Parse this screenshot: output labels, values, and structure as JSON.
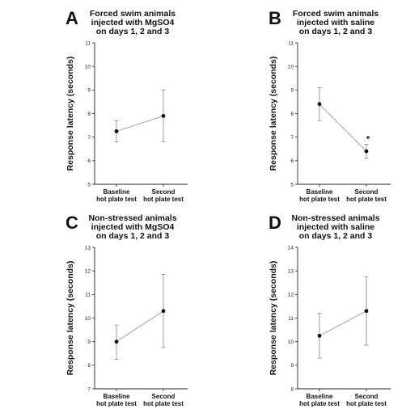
{
  "chart_data": [
    {
      "type": "line",
      "panel_label": "A",
      "title": [
        "Forced swim animals",
        "injected with MgSO4",
        "on days 1, 2 and 3"
      ],
      "ylabel": "Response latency (seconds)",
      "categories": [
        [
          "Baseline",
          "hot plate test"
        ],
        [
          "Second",
          "hot plate test"
        ]
      ],
      "values": [
        7.25,
        7.9
      ],
      "error_low": [
        6.8,
        6.8
      ],
      "error_high": [
        7.7,
        9.0
      ],
      "ylim": [
        5,
        11
      ],
      "yticks": [
        5,
        6,
        7,
        8,
        9,
        10,
        11
      ],
      "annotations": []
    },
    {
      "type": "line",
      "panel_label": "B",
      "title": [
        "Forced swim animals",
        "injected with saline",
        "on days 1, 2 and 3"
      ],
      "ylabel": "Response latency (seconds)",
      "categories": [
        [
          "Baseline",
          "hot plate test"
        ],
        [
          "Second",
          "hot plate test"
        ]
      ],
      "values": [
        8.4,
        6.4
      ],
      "error_low": [
        7.7,
        6.1
      ],
      "error_high": [
        9.1,
        6.7
      ],
      "ylim": [
        5,
        11
      ],
      "yticks": [
        5,
        6,
        7,
        8,
        9,
        10,
        11
      ],
      "annotations": [
        {
          "text": "*",
          "index": 1
        }
      ]
    },
    {
      "type": "line",
      "panel_label": "C",
      "title": [
        "Non-stressed animals",
        "injected with MgSO4",
        "on days 1, 2 and 3"
      ],
      "ylabel": "Response latency (seconds)",
      "categories": [
        [
          "Baseline",
          "hot plate test"
        ],
        [
          "Second",
          "hot plate test"
        ]
      ],
      "values": [
        9.0,
        10.3
      ],
      "error_low": [
        8.25,
        8.75
      ],
      "error_high": [
        9.7,
        11.85
      ],
      "ylim": [
        7,
        13
      ],
      "yticks": [
        7,
        8,
        9,
        10,
        11,
        12,
        13
      ],
      "annotations": []
    },
    {
      "type": "line",
      "panel_label": "D",
      "title": [
        "Non-stressed animals",
        "injected with saline",
        "on days 1, 2 and 3"
      ],
      "ylabel": "Response latency (seconds)",
      "categories": [
        [
          "Baseline",
          "hot plate test"
        ],
        [
          "Second",
          "hot plate test"
        ]
      ],
      "values": [
        10.25,
        11.3
      ],
      "error_low": [
        9.3,
        9.85
      ],
      "error_high": [
        11.2,
        12.75
      ],
      "ylim": [
        8,
        14
      ],
      "yticks": [
        8,
        9,
        10,
        11,
        12,
        13,
        14
      ],
      "annotations": []
    }
  ]
}
